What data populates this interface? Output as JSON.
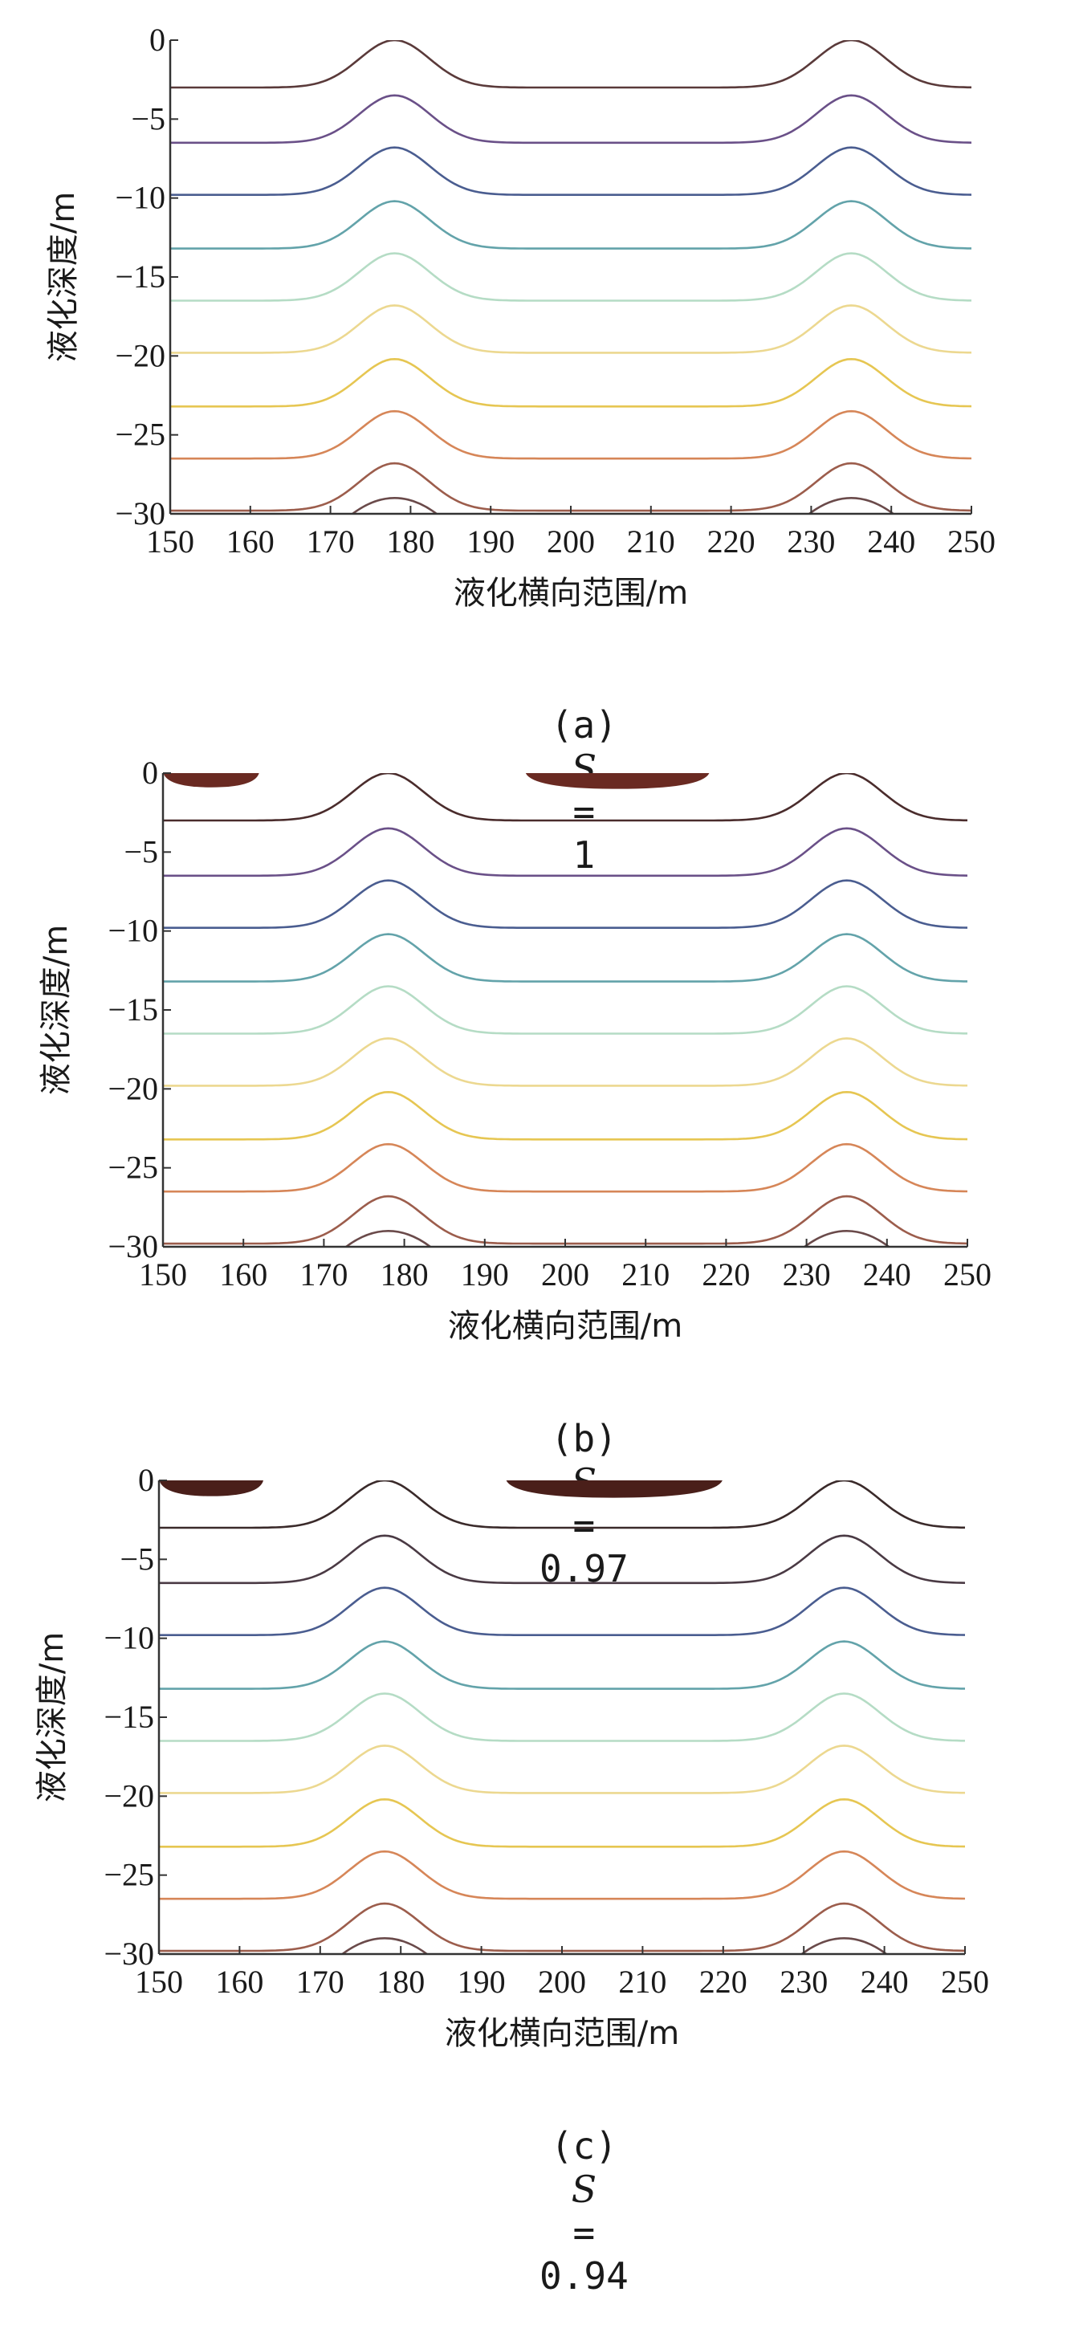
{
  "chart_data": [
    {
      "type": "contour",
      "panel_label": "(a)",
      "param_symbol": "S",
      "param_value": "1",
      "xlabel": "液化横向范围/m",
      "ylabel": "液化深度/m",
      "xlim": [
        150,
        250
      ],
      "ylim": [
        -30,
        0
      ],
      "xticks": [
        150,
        160,
        170,
        180,
        190,
        200,
        210,
        220,
        230,
        240,
        250
      ],
      "yticks": [
        0,
        -5,
        -10,
        -15,
        -20,
        -25,
        -30
      ],
      "peaks_x": [
        178,
        235
      ],
      "contour_base_depths": [
        -3,
        -6.5,
        -9.8,
        -13.2,
        -16.5,
        -19.8,
        -23.2,
        -26.5,
        -29.8
      ],
      "contour_colors": [
        "#5a3a3a",
        "#6a5088",
        "#4a5d90",
        "#63a3aa",
        "#b5dcc5",
        "#ecd890",
        "#e6c652",
        "#d68658",
        "#9c5d4c"
      ],
      "liquefied_zones": []
    },
    {
      "type": "contour",
      "panel_label": "(b)",
      "param_symbol": "S",
      "param_value": "0.97",
      "xlabel": "液化横向范围/m",
      "ylabel": "液化深度/m",
      "xlim": [
        150,
        250
      ],
      "ylim": [
        -30,
        0
      ],
      "xticks": [
        150,
        160,
        170,
        180,
        190,
        200,
        210,
        220,
        230,
        240,
        250
      ],
      "yticks": [
        0,
        -5,
        -10,
        -15,
        -20,
        -25,
        -30
      ],
      "peaks_x": [
        178,
        235
      ],
      "contour_base_depths": [
        -3,
        -6.5,
        -9.8,
        -13.2,
        -16.5,
        -19.8,
        -23.2,
        -26.5,
        -29.8
      ],
      "contour_colors": [
        "#4a2c2c",
        "#6a5088",
        "#4a5d90",
        "#63a3aa",
        "#b5dcc5",
        "#ecd890",
        "#e6c652",
        "#d68658",
        "#9c5d4c"
      ],
      "liquefied_zones": [
        {
          "x_start": 150,
          "x_end": 162,
          "depth": 0.9
        },
        {
          "x_start": 195,
          "x_end": 218,
          "depth": 1.0
        }
      ],
      "zone_color": "#6a2a22"
    },
    {
      "type": "contour",
      "panel_label": "(c)",
      "param_symbol": "S",
      "param_value": "0.94",
      "xlabel": "液化横向范围/m",
      "ylabel": "液化深度/m",
      "xlim": [
        150,
        250
      ],
      "ylim": [
        -30,
        0
      ],
      "xticks": [
        150,
        160,
        170,
        180,
        190,
        200,
        210,
        220,
        230,
        240,
        250
      ],
      "yticks": [
        0,
        -5,
        -10,
        -15,
        -20,
        -25,
        -30
      ],
      "peaks_x": [
        178,
        235
      ],
      "contour_base_depths": [
        -3,
        -6.5,
        -9.8,
        -13.2,
        -16.5,
        -19.8,
        -23.2,
        -26.5,
        -29.8
      ],
      "contour_colors": [
        "#3a2a2a",
        "#4a3a44",
        "#4a5d90",
        "#63a3aa",
        "#b5dcc5",
        "#ecd890",
        "#e6c652",
        "#d68658",
        "#9c5d4c"
      ],
      "liquefied_zones": [
        {
          "x_start": 150,
          "x_end": 163,
          "depth": 1.0
        },
        {
          "x_start": 193,
          "x_end": 220,
          "depth": 1.1
        }
      ],
      "zone_color": "#4a1f1a"
    }
  ]
}
